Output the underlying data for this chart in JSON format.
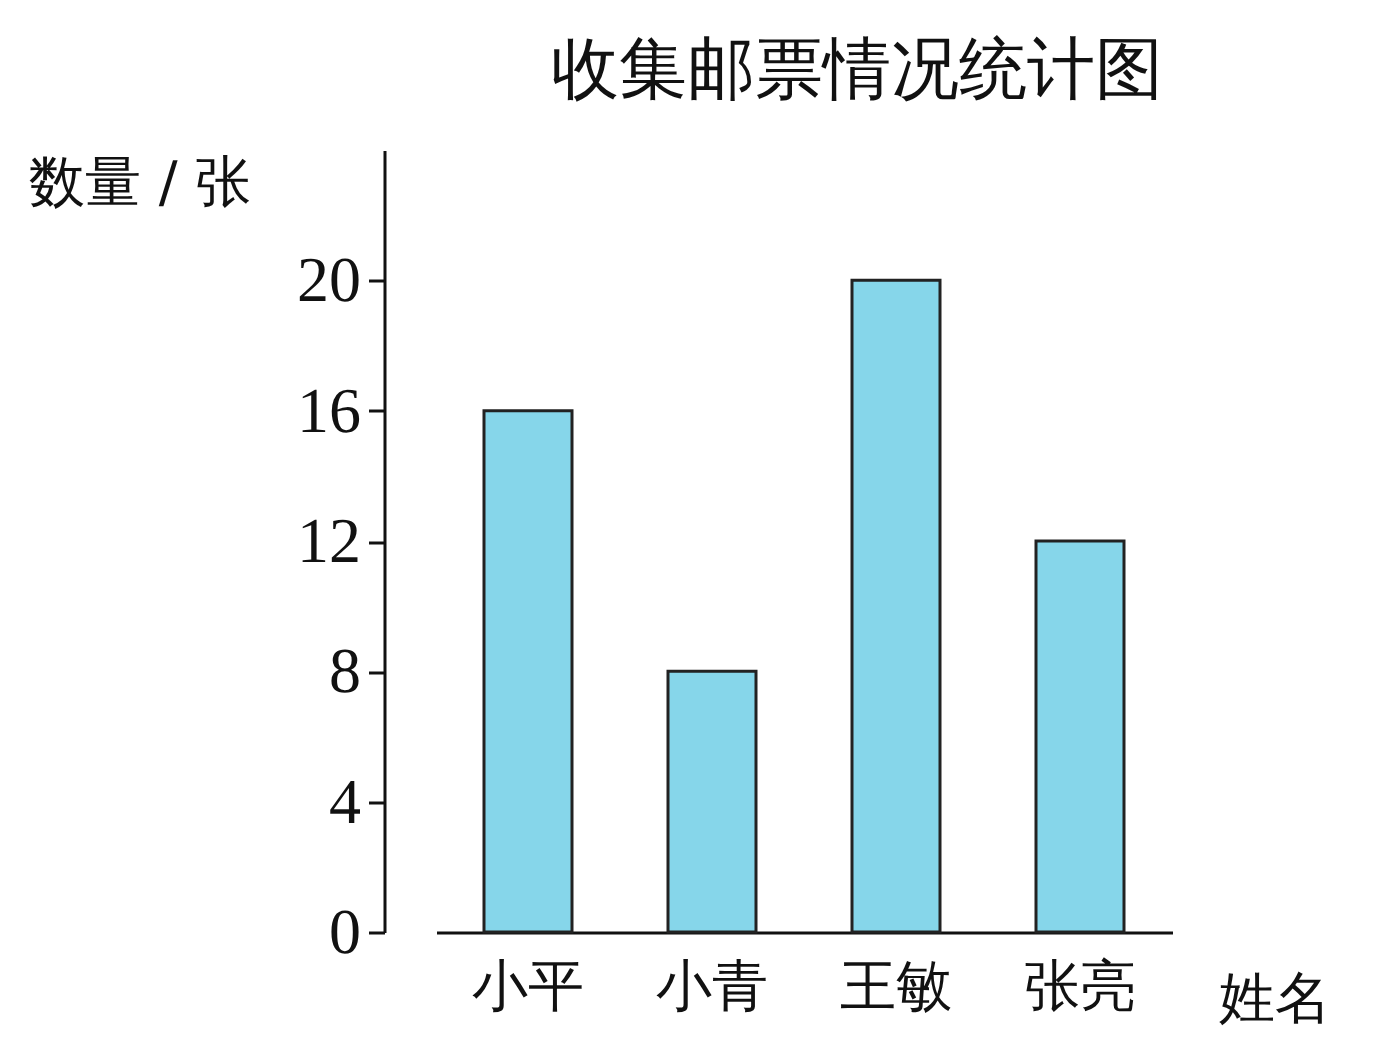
{
  "chart_data": {
    "type": "bar",
    "title": "收集邮票情况统计图",
    "xlabel": "姓名",
    "ylabel": "数量 / 张",
    "categories": [
      "小平",
      "小青",
      "王敏",
      "张亮"
    ],
    "values": [
      16,
      8,
      20,
      12
    ],
    "color": "#86d6ea",
    "ylim": [
      0,
      24
    ],
    "yticks": [
      0,
      4,
      8,
      12,
      16,
      20
    ]
  }
}
